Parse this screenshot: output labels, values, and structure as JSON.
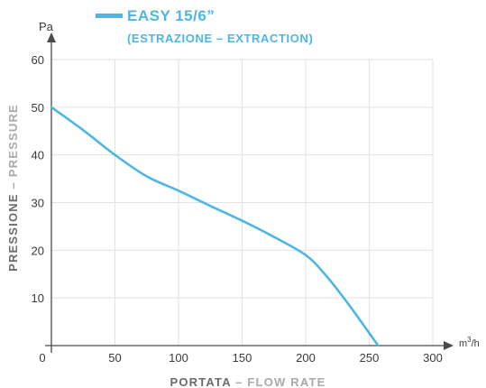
{
  "chart_data": {
    "type": "line",
    "legend": {
      "series_name": "EASY 15/6”",
      "note": "(ESTRAZIONE – EXTRACTION)"
    },
    "xlabel_primary": "PORTATA",
    "xlabel_separator": " – ",
    "xlabel_secondary": "FLOW RATE",
    "ylabel_primary": "PRESSIONE",
    "ylabel_separator": " – ",
    "ylabel_secondary": "PRESSURE",
    "x_unit_base": "m",
    "x_unit_sup": "3",
    "x_unit_tail": "/h",
    "y_unit": "Pa",
    "xlim": [
      0,
      300
    ],
    "ylim": [
      0,
      60
    ],
    "x_ticks": [
      "0",
      "50",
      "100",
      "150",
      "200",
      "250",
      "300"
    ],
    "y_ticks": [
      "10",
      "20",
      "30",
      "40",
      "50",
      "60"
    ],
    "grid": true,
    "line_color": "#4db6e2",
    "series": [
      {
        "name": "EASY 15/6”",
        "x": [
          0,
          25,
          50,
          75,
          100,
          125,
          150,
          175,
          200,
          215,
          230,
          245,
          257
        ],
        "y": [
          50,
          45.2,
          40,
          35.5,
          32.5,
          29.3,
          26.2,
          22.8,
          19,
          15,
          10,
          4.5,
          0
        ]
      }
    ]
  }
}
